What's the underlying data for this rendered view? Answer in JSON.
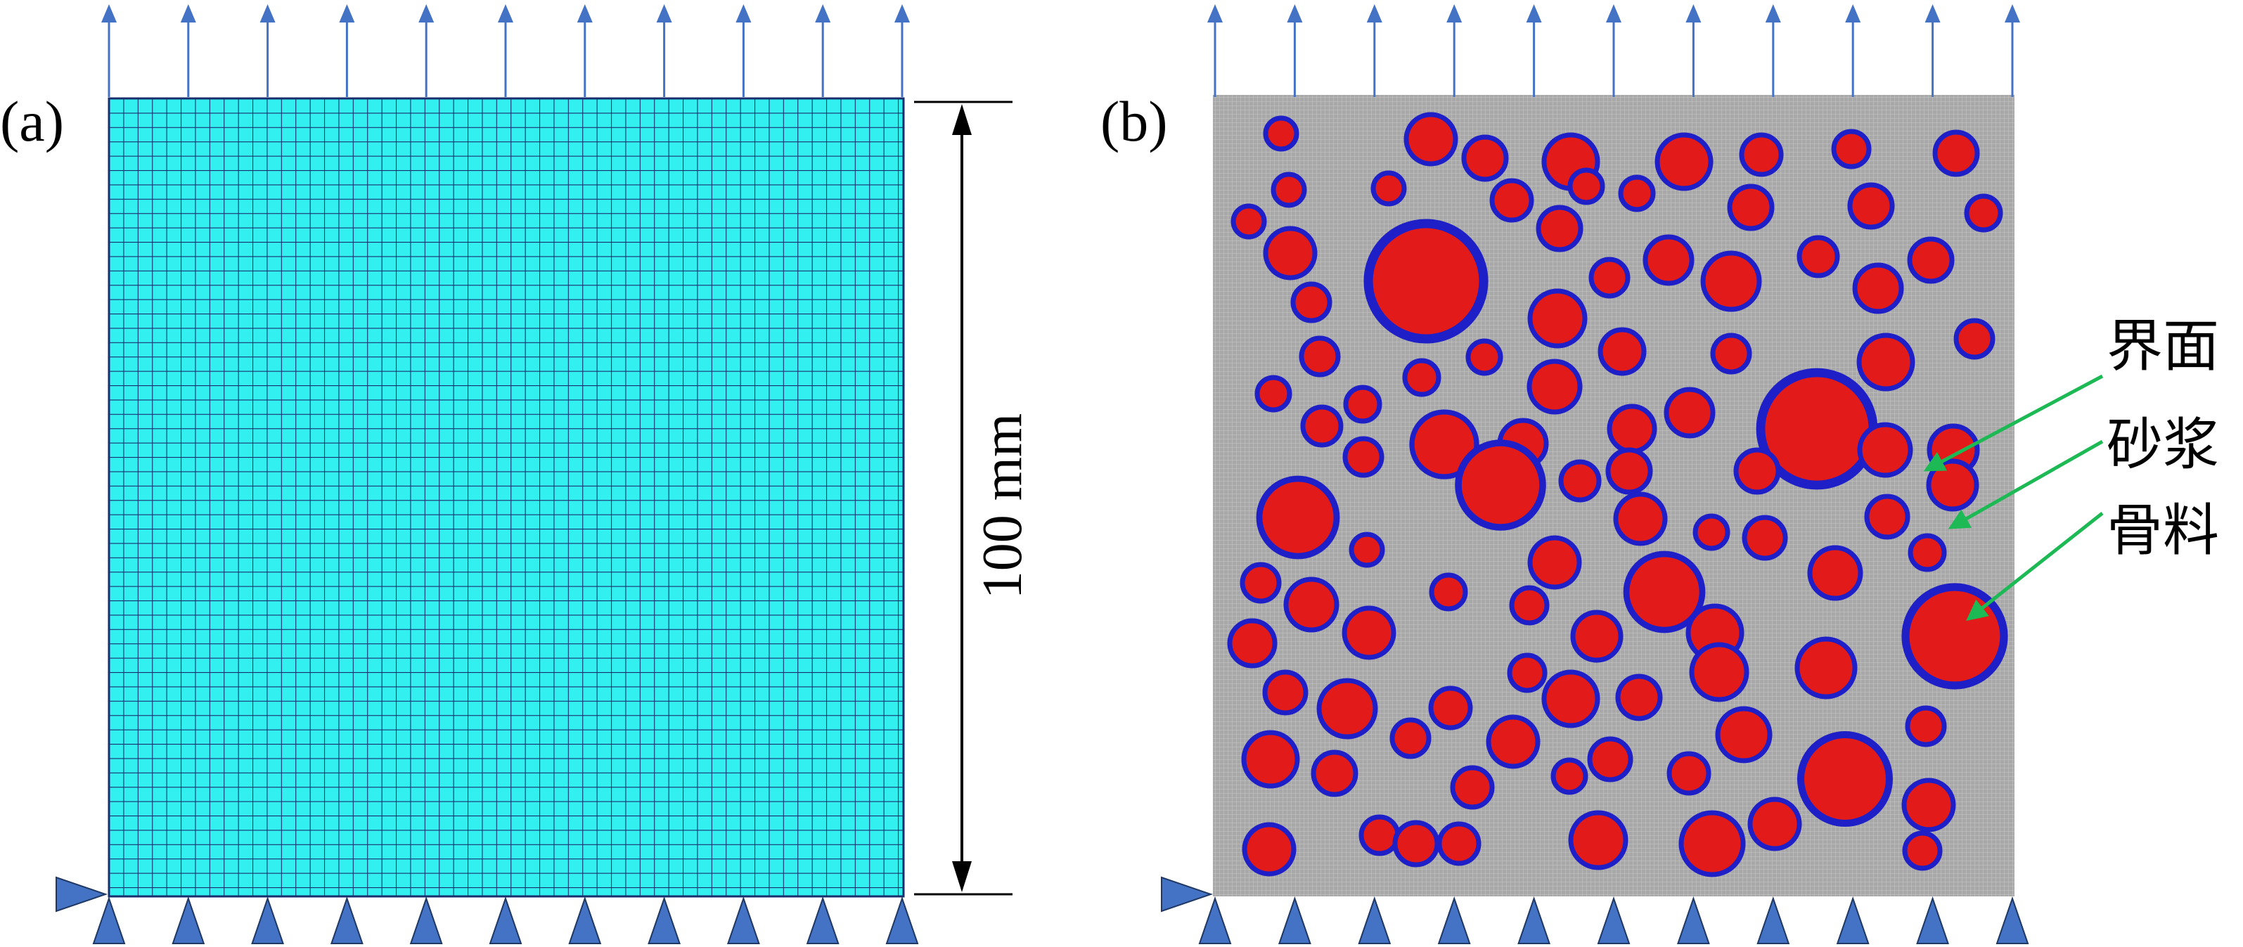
{
  "panel_a": {
    "label": "(a)",
    "dimension_label": "100 mm",
    "mesh_fill": "#33F0F0",
    "mesh_line": "#1A2E6E"
  },
  "panel_b": {
    "label": "(b)",
    "annotations": [
      {
        "text": "界面",
        "id": "interface"
      },
      {
        "text": "砂浆",
        "id": "mortar"
      },
      {
        "text": "骨料",
        "id": "aggregate"
      }
    ],
    "mortar_color": "#A8A8A8",
    "aggregate_color": "#E31A1A",
    "interface_color": "#1F1FC8",
    "leader_color": "#1DB954"
  },
  "load_arrow_color": "#4472C4",
  "support_color": "#4472C4",
  "support_stroke": "#1F3864"
}
